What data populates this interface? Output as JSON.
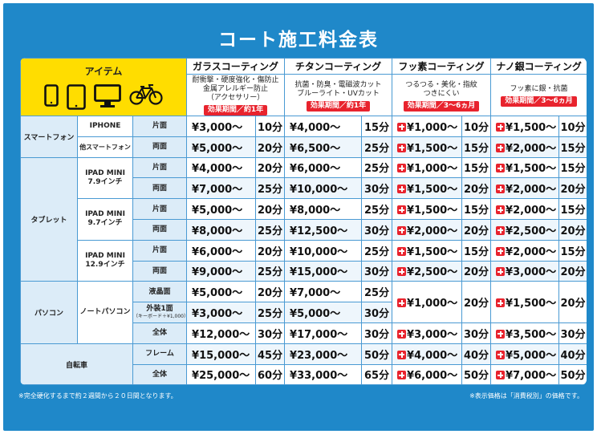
{
  "title": "コート施工料金表",
  "header": {
    "item_label": "アイテム",
    "icons": [
      "smartphone-icon",
      "tablet-icon",
      "monitor-icon",
      "bicycle-icon"
    ],
    "coatings": [
      {
        "name": "ガラスコーティング",
        "desc": [
          "耐衝撃・硬度強化・傷防止",
          "金属アレルギー防止",
          "（アクセサリー）"
        ],
        "effect": "効果期間／約1年"
      },
      {
        "name": "チタンコーティング",
        "desc": [
          "抗菌・防臭・電磁波カット",
          "ブルーライト・UVカット"
        ],
        "effect": "効果期間／約1年"
      },
      {
        "name": "フッ素コーティング",
        "desc": [
          "つるつる・美化・指紋",
          "つきにくい"
        ],
        "effect": "効果期間／3～6ヵ月"
      },
      {
        "name": "ナノ銀コーティング",
        "desc": [
          "フッ素に銀・抗菌"
        ],
        "effect": "効果期間／3～6ヵ月"
      }
    ]
  },
  "rows": [
    {
      "cat": "スマートフォン",
      "dev": "IPHONE",
      "side": "片面",
      "cells": [
        [
          "¥3,000～",
          "10分"
        ],
        [
          "¥4,000～",
          "15分"
        ],
        [
          "¥1,000～",
          "10分"
        ],
        [
          "¥1,500～",
          "10分"
        ]
      ]
    },
    {
      "dev": "他スマートフォン",
      "side": "両面",
      "cells": [
        [
          "¥5,000～",
          "20分"
        ],
        [
          "¥6,500～",
          "25分"
        ],
        [
          "¥1,500～",
          "15分"
        ],
        [
          "¥2,000～",
          "15分"
        ]
      ]
    },
    {
      "cat": "タブレット",
      "dev": "IPAD MINI\n7.9インチ",
      "side": "片面",
      "cells": [
        [
          "¥4,000～",
          "20分"
        ],
        [
          "¥6,000～",
          "25分"
        ],
        [
          "¥1,000～",
          "15分"
        ],
        [
          "¥1,500～",
          "15分"
        ]
      ]
    },
    {
      "side": "両面",
      "cells": [
        [
          "¥7,000～",
          "25分"
        ],
        [
          "¥10,000～",
          "30分"
        ],
        [
          "¥1,500～",
          "20分"
        ],
        [
          "¥2,000～",
          "20分"
        ]
      ]
    },
    {
      "dev": "IPAD MINI\n9.7インチ",
      "side": "片面",
      "cells": [
        [
          "¥5,000～",
          "20分"
        ],
        [
          "¥8,000～",
          "25分"
        ],
        [
          "¥1,500～",
          "15分"
        ],
        [
          "¥2,000～",
          "15分"
        ]
      ]
    },
    {
      "side": "両面",
      "cells": [
        [
          "¥8,000～",
          "25分"
        ],
        [
          "¥12,500～",
          "30分"
        ],
        [
          "¥2,000～",
          "20分"
        ],
        [
          "¥2,500～",
          "20分"
        ]
      ]
    },
    {
      "dev": "IPAD MINI\n12.9インチ",
      "side": "片面",
      "cells": [
        [
          "¥6,000～",
          "20分"
        ],
        [
          "¥10,000～",
          "25分"
        ],
        [
          "¥1,500～",
          "15分"
        ],
        [
          "¥2,000～",
          "15分"
        ]
      ]
    },
    {
      "side": "両面",
      "cells": [
        [
          "¥9,000～",
          "25分"
        ],
        [
          "¥15,000～",
          "30分"
        ],
        [
          "¥2,500～",
          "20分"
        ],
        [
          "¥3,000～",
          "20分"
        ]
      ]
    },
    {
      "cat": "パソコン",
      "dev": "ノートパソコン",
      "side": "液晶面",
      "cells": [
        [
          "¥5,000～",
          "20分"
        ],
        [
          "¥7,000～",
          "25分"
        ],
        [
          "¥1,000～",
          "20分"
        ],
        [
          "¥1,500～",
          "20分"
        ]
      ]
    },
    {
      "side": "外装1面",
      "side_sub": "（キーボード＋¥1,000）",
      "cells": [
        [
          "¥3,000～",
          "25分"
        ],
        [
          "¥5,000～",
          "30分"
        ]
      ]
    },
    {
      "side": "全体",
      "cells": [
        [
          "¥12,000～",
          "30分"
        ],
        [
          "¥17,000～",
          "30分"
        ],
        [
          "¥3,000～",
          "30分"
        ],
        [
          "¥3,500～",
          "30分"
        ]
      ]
    },
    {
      "cat": "自転車",
      "side": "フレーム",
      "cells": [
        [
          "¥15,000～",
          "45分"
        ],
        [
          "¥23,000～",
          "50分"
        ],
        [
          "¥4,000～",
          "40分"
        ],
        [
          "¥5,000～",
          "40分"
        ]
      ]
    },
    {
      "side": "全体",
      "cells": [
        [
          "¥25,000～",
          "60分"
        ],
        [
          "¥33,000～",
          "65分"
        ],
        [
          "¥6,000～",
          "50分"
        ],
        [
          "¥7,000～",
          "50分"
        ]
      ]
    }
  ],
  "notes": {
    "left": "※完全硬化するまで約２週間から２０日間となります。",
    "right": "※表示価格は「消費税別」の価格です。"
  },
  "colors": {
    "background": "#1f88c9",
    "header_yellow": "#ffdd00",
    "accent_red": "#e8232d",
    "border": "#4a9ad3"
  }
}
